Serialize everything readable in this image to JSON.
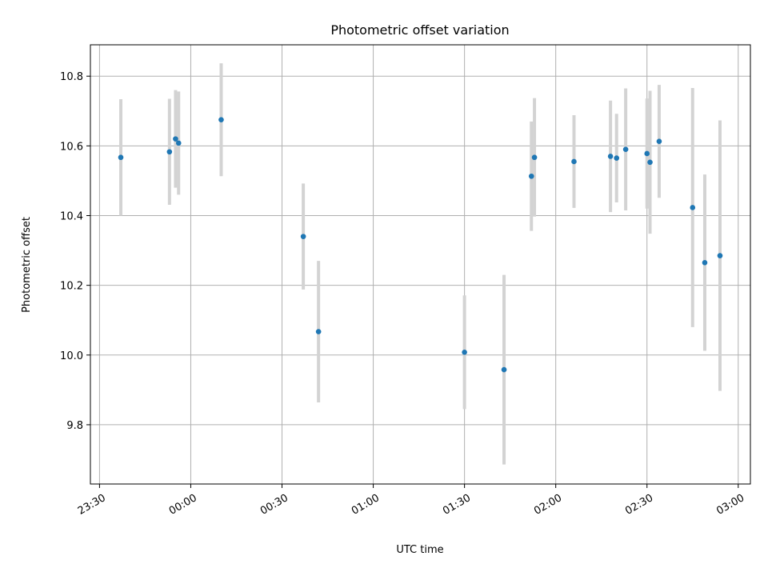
{
  "chart_data": {
    "type": "scatter",
    "title": "Photometric offset variation",
    "xlabel": "UTC time",
    "ylabel": "Photometric offset",
    "x_unit": "time (HH:MM UTC)",
    "xlim": [
      "23:27",
      "03:04"
    ],
    "ylim": [
      9.63,
      10.89
    ],
    "x_ticks": [
      "23:30",
      "00:00",
      "00:30",
      "01:00",
      "01:30",
      "02:00",
      "02:30",
      "03:00"
    ],
    "y_ticks": [
      "9.8",
      "10.0",
      "10.2",
      "10.4",
      "10.6",
      "10.8"
    ],
    "grid": true,
    "marker_color": "#1f77b4",
    "errorbar_color": "#d3d3d3",
    "series": [
      {
        "points": [
          {
            "x": "23:37",
            "y": 10.567,
            "err": 0.167
          },
          {
            "x": "23:53",
            "y": 10.583,
            "err": 0.152
          },
          {
            "x": "23:55",
            "y": 10.62,
            "err": 0.14
          },
          {
            "x": "23:56",
            "y": 10.608,
            "err": 0.148
          },
          {
            "x": "00:10",
            "y": 10.675,
            "err": 0.162
          },
          {
            "x": "00:37",
            "y": 10.34,
            "err": 0.152
          },
          {
            "x": "00:42",
            "y": 10.067,
            "err": 0.203
          },
          {
            "x": "01:30",
            "y": 10.008,
            "err": 0.163
          },
          {
            "x": "01:43",
            "y": 9.958,
            "err": 0.272
          },
          {
            "x": "01:52",
            "y": 10.513,
            "err": 0.157
          },
          {
            "x": "01:53",
            "y": 10.567,
            "err": 0.17
          },
          {
            "x": "02:06",
            "y": 10.555,
            "err": 0.133
          },
          {
            "x": "02:18",
            "y": 10.57,
            "err": 0.16
          },
          {
            "x": "02:20",
            "y": 10.565,
            "err": 0.127
          },
          {
            "x": "02:23",
            "y": 10.59,
            "err": 0.175
          },
          {
            "x": "02:30",
            "y": 10.578,
            "err": 0.158
          },
          {
            "x": "02:31",
            "y": 10.553,
            "err": 0.205
          },
          {
            "x": "02:34",
            "y": 10.613,
            "err": 0.162
          },
          {
            "x": "02:45",
            "y": 10.423,
            "err": 0.343
          },
          {
            "x": "02:49",
            "y": 10.265,
            "err": 0.253
          },
          {
            "x": "02:54",
            "y": 10.285,
            "err": 0.388
          }
        ]
      }
    ]
  }
}
